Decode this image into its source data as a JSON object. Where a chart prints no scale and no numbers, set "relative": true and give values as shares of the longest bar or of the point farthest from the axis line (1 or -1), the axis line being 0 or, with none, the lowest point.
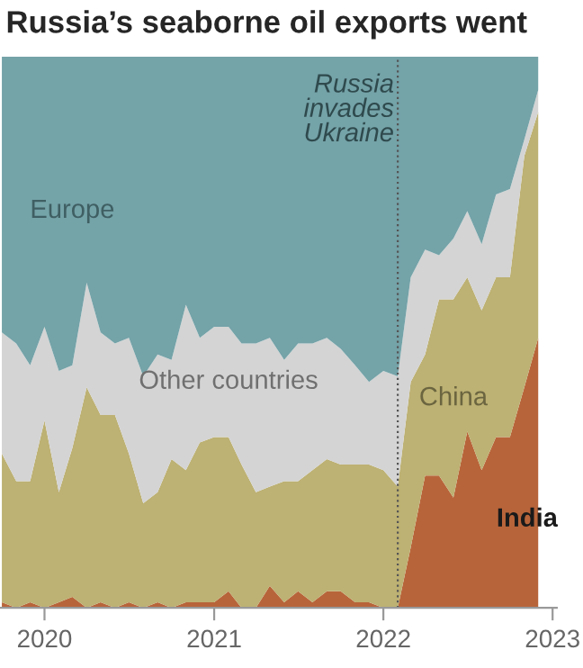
{
  "chart_data": {
    "type": "area",
    "title": "Russia’s seaborne oil exports went",
    "stacked": true,
    "relative": true,
    "legend": false,
    "grid": false,
    "x": [
      "2019-10",
      "2019-11",
      "2019-12",
      "2020-01",
      "2020-02",
      "2020-03",
      "2020-04",
      "2020-05",
      "2020-06",
      "2020-07",
      "2020-08",
      "2020-09",
      "2020-10",
      "2020-11",
      "2020-12",
      "2021-01",
      "2021-02",
      "2021-03",
      "2021-04",
      "2021-05",
      "2021-06",
      "2021-07",
      "2021-08",
      "2021-09",
      "2021-10",
      "2021-11",
      "2021-12",
      "2022-01",
      "2022-02",
      "2022-03",
      "2022-04",
      "2022-05",
      "2022-06",
      "2022-07",
      "2022-08",
      "2022-09",
      "2022-10",
      "2022-11",
      "2022-12"
    ],
    "xlim": [
      "2019-09-27",
      "2023-01-10"
    ],
    "xticks": [
      {
        "value": "2020",
        "label": "2020"
      },
      {
        "value": "2021",
        "label": "2021"
      },
      {
        "value": "2022",
        "label": "2022"
      },
      {
        "value": "2023",
        "label": "2023"
      }
    ],
    "tick_labels": "x",
    "series": [
      {
        "name": "India",
        "color": "#b8643a",
        "values": [
          0.01,
          0.0,
          0.01,
          0.0,
          0.01,
          0.02,
          0.0,
          0.01,
          0.0,
          0.01,
          0.0,
          0.01,
          0.0,
          0.01,
          0.01,
          0.01,
          0.03,
          0.0,
          0.0,
          0.04,
          0.01,
          0.03,
          0.01,
          0.03,
          0.03,
          0.01,
          0.01,
          0.0,
          0.0,
          0.11,
          0.24,
          0.24,
          0.2,
          0.32,
          0.25,
          0.31,
          0.31,
          0.4,
          0.49
        ]
      },
      {
        "name": "China",
        "color": "#bdb173",
        "values": [
          0.27,
          0.23,
          0.22,
          0.34,
          0.2,
          0.27,
          0.4,
          0.34,
          0.35,
          0.27,
          0.19,
          0.2,
          0.27,
          0.24,
          0.29,
          0.3,
          0.28,
          0.26,
          0.21,
          0.18,
          0.22,
          0.2,
          0.24,
          0.24,
          0.23,
          0.25,
          0.25,
          0.25,
          0.22,
          0.3,
          0.22,
          0.32,
          0.36,
          0.28,
          0.29,
          0.29,
          0.29,
          0.42,
          0.41
        ]
      },
      {
        "name": "Other countries",
        "color": "#d4d4d4",
        "values": [
          0.22,
          0.25,
          0.21,
          0.17,
          0.22,
          0.15,
          0.19,
          0.15,
          0.13,
          0.21,
          0.23,
          0.25,
          0.18,
          0.3,
          0.19,
          0.2,
          0.2,
          0.22,
          0.27,
          0.27,
          0.22,
          0.25,
          0.23,
          0.22,
          0.21,
          0.18,
          0.15,
          0.18,
          0.2,
          0.19,
          0.19,
          0.08,
          0.11,
          0.12,
          0.12,
          0.15,
          0.16,
          0.03,
          0.04
        ]
      },
      {
        "name": "Europe",
        "color": "#74a3a8",
        "values": [
          0.5,
          0.52,
          0.56,
          0.49,
          0.57,
          0.56,
          0.41,
          0.5,
          0.52,
          0.51,
          0.58,
          0.54,
          0.55,
          0.45,
          0.51,
          0.49,
          0.49,
          0.52,
          0.52,
          0.51,
          0.55,
          0.52,
          0.52,
          0.51,
          0.53,
          0.56,
          0.59,
          0.57,
          0.58,
          0.4,
          0.35,
          0.36,
          0.33,
          0.28,
          0.34,
          0.25,
          0.24,
          0.15,
          0.06
        ]
      }
    ],
    "ref_lines": [
      {
        "axis": "x",
        "value": "2022-02",
        "label": "Russia\ninvades\nUkraine",
        "color": "#555555",
        "line_style": "dotted"
      }
    ]
  }
}
